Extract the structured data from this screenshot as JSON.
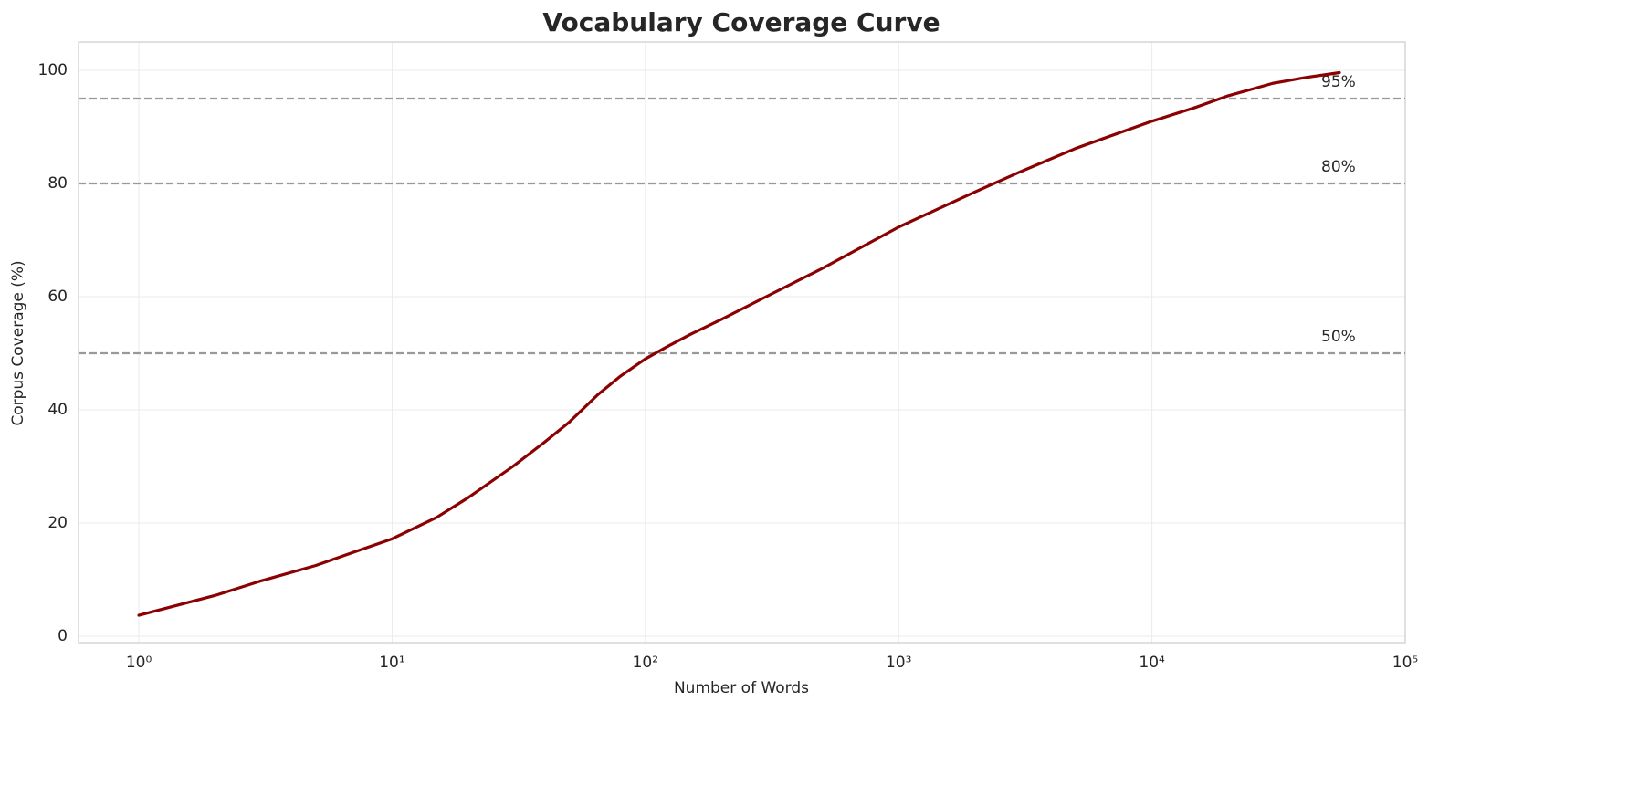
{
  "chart_data": {
    "type": "line",
    "title": "Vocabulary Coverage Curve",
    "x_label": "Number of Words",
    "y_label": "Corpus Coverage (%)",
    "x": [
      1,
      2,
      3,
      5,
      7,
      10,
      15,
      20,
      30,
      40,
      50,
      65,
      80,
      100,
      120,
      150,
      200,
      300,
      500,
      1000,
      2000,
      3000,
      5000,
      10000,
      15000,
      20000,
      30000,
      40000,
      55000
    ],
    "values": [
      3.7,
      7.2,
      9.7,
      12.5,
      14.8,
      17.2,
      21,
      24.5,
      30,
      34.3,
      37.8,
      42.7,
      46,
      49,
      51,
      53.3,
      56,
      60,
      65,
      72.3,
      78.5,
      82,
      86.2,
      91,
      93.5,
      95.5,
      97.7,
      98.7,
      99.6
    ],
    "color": "#8b0000",
    "x_log": true,
    "grid": true,
    "xlim": [
      0.578,
      100000
    ],
    "xticks": [
      {
        "value": 1,
        "label": "10⁰"
      },
      {
        "value": 10,
        "label": "10¹"
      },
      {
        "value": 100,
        "label": "10²"
      },
      {
        "value": 1000,
        "label": "10³"
      },
      {
        "value": 10000,
        "label": "10⁴"
      },
      {
        "value": 100000,
        "label": "10⁵"
      }
    ],
    "ylim": [
      -1.13,
      105
    ],
    "yticks": [
      0,
      20,
      40,
      60,
      80,
      100
    ],
    "reference_lines": [
      {
        "value": 50,
        "label": "50%"
      },
      {
        "value": 80,
        "label": "80%"
      },
      {
        "value": 95,
        "label": "95%"
      }
    ],
    "reference_color": "#999999"
  }
}
